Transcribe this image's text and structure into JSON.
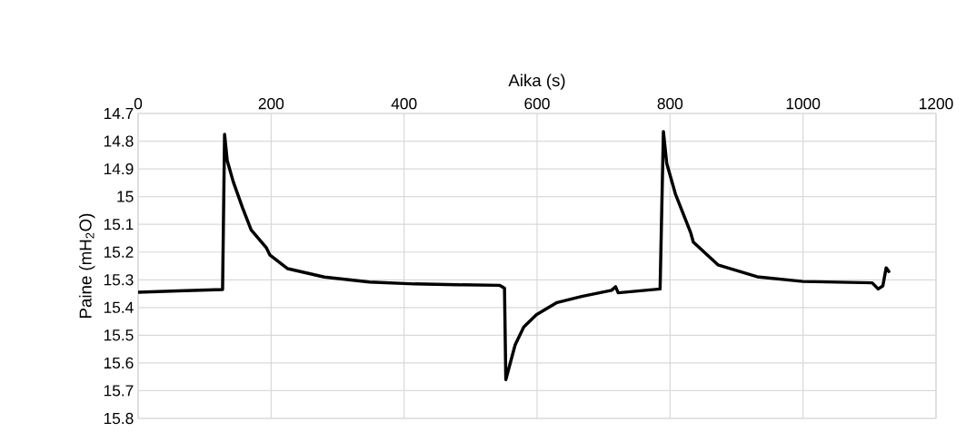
{
  "chart_data": {
    "type": "line",
    "xlabel": "Aika (s)",
    "ylabel": "Paine (mH$_{2}$O)",
    "x": [
      0,
      60,
      127,
      130,
      134,
      143,
      157,
      170,
      193,
      198,
      225,
      280,
      348,
      416,
      480,
      544,
      551,
      553,
      567,
      580,
      599,
      630,
      667,
      712,
      718,
      722,
      785,
      790,
      795,
      808,
      831,
      835,
      872,
      931,
      1000,
      1104,
      1113,
      1120,
      1125,
      1129
    ],
    "series": [
      {
        "color": "#000000",
        "values": [
          15.345,
          15.34,
          15.335,
          14.775,
          14.87,
          14.946,
          15.04,
          15.12,
          15.185,
          15.21,
          15.26,
          15.29,
          15.308,
          15.315,
          15.318,
          15.32,
          15.33,
          15.66,
          15.535,
          15.47,
          15.426,
          15.382,
          15.36,
          15.338,
          15.325,
          15.347,
          15.333,
          14.765,
          14.88,
          14.99,
          15.13,
          15.164,
          15.246,
          15.289,
          15.306,
          15.311,
          15.333,
          15.322,
          15.257,
          15.27
        ]
      }
    ],
    "xlim": [
      0,
      1200
    ],
    "xticks": [
      0,
      200,
      400,
      600,
      800,
      1000,
      1200
    ],
    "ylim": [
      15.8,
      14.7
    ],
    "yticks": [
      14.7,
      14.8,
      14.9,
      15,
      15.1,
      15.2,
      15.3,
      15.4,
      15.5,
      15.6,
      15.7,
      15.8
    ],
    "grid": true
  }
}
